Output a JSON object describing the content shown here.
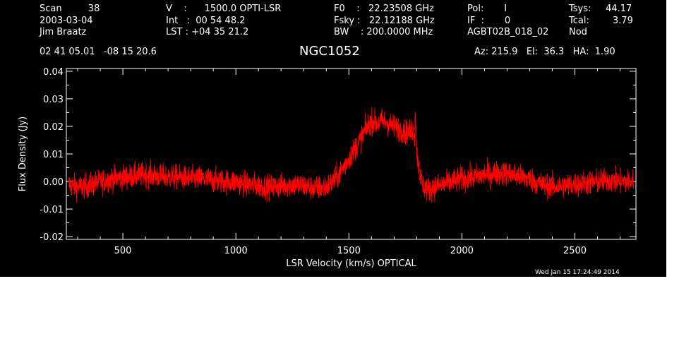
{
  "header": {
    "col1": [
      "Scan         38",
      "2003-03-04",
      "Jim Braatz"
    ],
    "col2": [
      "V    :      1500.0 OPTI-LSR",
      "Int   :  00 54 48.2",
      "LST : +04 35 21.2"
    ],
    "col3": [
      "F0    :   22.23508 GHz",
      "Fsky :   22.12188 GHz",
      "BW    : 200.0000 MHz"
    ],
    "col4": [
      "Pol:       I",
      "IF  :       0",
      "AGBT02B_018_02"
    ],
    "col5": [
      "Tsys:     44.17",
      "Tcal:        3.79",
      "Nod"
    ],
    "coords": "02 41 05.01   -08 15 20.6",
    "source": "NGC1052",
    "az_el_ha": "Az: 215.9   El:  36.3   HA:  1.90",
    "timestamp": "Wed Jan 15 17:24:49 2014"
  },
  "chart_data": {
    "type": "line",
    "title": "NGC1052",
    "xlabel": "LSR Velocity (km/s) OPTICAL",
    "ylabel": "Flux Density (Jy)",
    "xlim": [
      250,
      2770
    ],
    "ylim": [
      -0.021,
      0.041
    ],
    "xticks": [
      500,
      1000,
      1500,
      2000,
      2500
    ],
    "yticks": [
      -0.02,
      -0.01,
      0.0,
      0.01,
      0.02,
      0.03,
      0.04
    ],
    "ytick_labels": [
      "-0.02",
      "-0.01",
      "0.00",
      "0.01",
      "0.02",
      "0.03",
      "0.04"
    ],
    "line_color": "#ff0000",
    "noise_rms": 0.0022,
    "series": [
      {
        "x": [
          260,
          300,
          350,
          400,
          450,
          500,
          550,
          600,
          650,
          700,
          750,
          800,
          850,
          900,
          950,
          1000,
          1050,
          1100,
          1150,
          1200,
          1250,
          1300,
          1350,
          1400,
          1430,
          1460,
          1490,
          1520,
          1550,
          1575,
          1600,
          1625,
          1650,
          1675,
          1700,
          1725,
          1750,
          1770,
          1785,
          1795,
          1805,
          1815,
          1830,
          1850,
          1880,
          1920,
          1960,
          2000,
          2050,
          2100,
          2150,
          2200,
          2250,
          2300,
          2350,
          2400,
          2450,
          2500,
          2550,
          2600,
          2650,
          2700,
          2760
        ],
        "y": [
          -0.001,
          -0.002,
          -0.0015,
          0.0,
          0.001,
          0.0015,
          0.002,
          0.0025,
          0.002,
          0.0018,
          0.0015,
          0.0012,
          0.001,
          0.0005,
          0.0,
          0.0,
          -0.001,
          -0.0015,
          -0.002,
          -0.0015,
          -0.001,
          -0.0015,
          -0.0025,
          -0.002,
          0.0,
          0.003,
          0.007,
          0.011,
          0.015,
          0.019,
          0.022,
          0.021,
          0.022,
          0.021,
          0.02,
          0.019,
          0.018,
          0.018,
          0.019,
          0.015,
          0.008,
          0.002,
          -0.0015,
          -0.003,
          -0.002,
          -0.001,
          0.0,
          0.001,
          0.0015,
          0.0025,
          0.003,
          0.003,
          0.002,
          0.001,
          -0.001,
          -0.002,
          -0.0015,
          -0.001,
          -0.0005,
          0.0,
          0.0005,
          0.0,
          0.0
        ]
      }
    ]
  }
}
